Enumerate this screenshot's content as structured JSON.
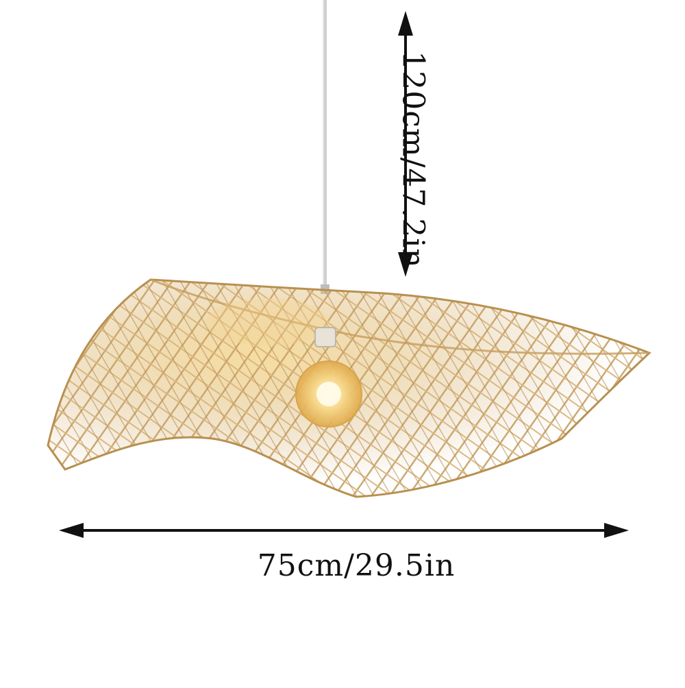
{
  "product": {
    "name": "bamboo woven pendant lamp",
    "icons": [
      "bamboo-pendant-lamp-icon",
      "light-bulb-icon",
      "cord-icon"
    ],
    "colors": {
      "bamboo": "#c9a46a",
      "bamboo_light": "#e8cf9c",
      "bulb_glow": "#fff3c8",
      "cord": "#cfcfcf",
      "arrow": "#111111"
    }
  },
  "dimensions": {
    "height": "120cm/47.2in",
    "width": "75cm/29.5in"
  }
}
